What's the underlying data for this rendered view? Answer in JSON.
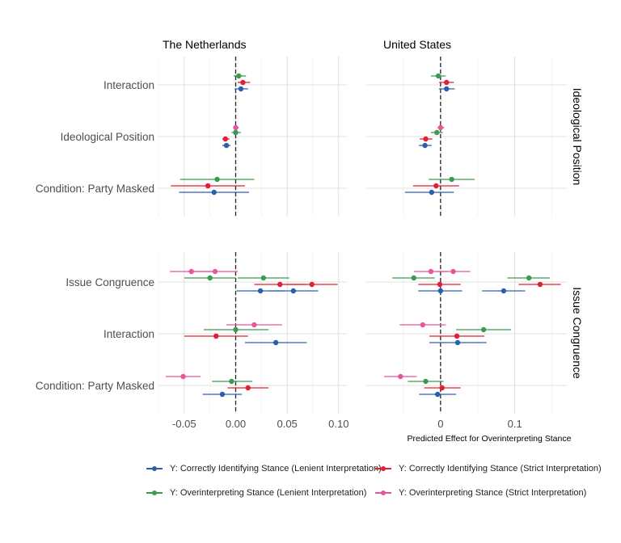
{
  "chart_data": {
    "type": "scatter",
    "subtype": "coefficient-plot",
    "column_titles": [
      "The Netherlands",
      "United States"
    ],
    "row_titles": [
      "Ideological Position",
      "Issue Congruence"
    ],
    "x_axis_label_right": "Predicted Effect for Overinterpreting Stance",
    "x_ticks_left": [
      -0.05,
      0.0,
      0.05,
      0.1
    ],
    "x_tick_labels_left": [
      "-0.05",
      "0.00",
      "0.05",
      "0.10"
    ],
    "x_ticks_right": [
      0.0,
      0.1
    ],
    "x_tick_labels_right": [
      "0",
      "0.1"
    ],
    "xlim_left": [
      -0.075,
      0.108
    ],
    "xlim_right": [
      -0.1,
      0.17
    ],
    "reference_line": 0,
    "grid": true,
    "legend_position": "bottom",
    "series": [
      {
        "name": "Y: Correctly Identifying Stance (Lenient Interpretation)",
        "color": "#2b5fae"
      },
      {
        "name": "Y: Overinterpreting Stance (Lenient Interpretation)",
        "color": "#3a9a4f"
      },
      {
        "name": "Y: Correctly Identifying Stance (Strict Interpretation)",
        "color": "#e41f2f"
      },
      {
        "name": "Y: Overinterpreting Stance (Strict Interpretation)",
        "color": "#e8559a"
      }
    ],
    "panels": [
      {
        "row": "Ideological Position",
        "col": "The Netherlands",
        "categories": [
          "Interaction",
          "Ideological Position",
          "Condition: Party Masked"
        ],
        "estimates": [
          {
            "category": "Interaction",
            "series": 1,
            "est": 0.003,
            "lo": -0.002,
            "hi": 0.01
          },
          {
            "category": "Interaction",
            "series": 2,
            "est": 0.007,
            "lo": 0.002,
            "hi": 0.014
          },
          {
            "category": "Interaction",
            "series": 0,
            "est": 0.005,
            "lo": -0.001,
            "hi": 0.012
          },
          {
            "category": "Ideological Position",
            "series": 3,
            "est": 0.0,
            "lo": -0.002,
            "hi": 0.003
          },
          {
            "category": "Ideological Position",
            "series": 1,
            "est": 0.0,
            "lo": -0.004,
            "hi": 0.005
          },
          {
            "category": "Ideological Position",
            "series": 2,
            "est": -0.01,
            "lo": -0.013,
            "hi": -0.006
          },
          {
            "category": "Ideological Position",
            "series": 0,
            "est": -0.009,
            "lo": -0.013,
            "hi": -0.005
          },
          {
            "category": "Condition: Party Masked",
            "series": 1,
            "est": -0.018,
            "lo": -0.054,
            "hi": 0.018
          },
          {
            "category": "Condition: Party Masked",
            "series": 2,
            "est": -0.027,
            "lo": -0.063,
            "hi": 0.009
          },
          {
            "category": "Condition: Party Masked",
            "series": 0,
            "est": -0.021,
            "lo": -0.055,
            "hi": 0.013
          }
        ]
      },
      {
        "row": "Ideological Position",
        "col": "United States",
        "categories": [
          "Interaction",
          "Ideological Position",
          "Condition: Party Masked"
        ],
        "estimates": [
          {
            "category": "Interaction",
            "series": 1,
            "est": -0.003,
            "lo": -0.013,
            "hi": 0.007
          },
          {
            "category": "Interaction",
            "series": 2,
            "est": 0.008,
            "lo": -0.002,
            "hi": 0.018
          },
          {
            "category": "Interaction",
            "series": 0,
            "est": 0.008,
            "lo": -0.002,
            "hi": 0.019
          },
          {
            "category": "Ideological Position",
            "series": 3,
            "est": 0.0,
            "lo": -0.004,
            "hi": 0.005
          },
          {
            "category": "Ideological Position",
            "series": 1,
            "est": -0.005,
            "lo": -0.013,
            "hi": 0.003
          },
          {
            "category": "Ideological Position",
            "series": 2,
            "est": -0.02,
            "lo": -0.028,
            "hi": -0.011
          },
          {
            "category": "Ideological Position",
            "series": 0,
            "est": -0.021,
            "lo": -0.029,
            "hi": -0.012
          },
          {
            "category": "Condition: Party Masked",
            "series": 1,
            "est": 0.015,
            "lo": -0.016,
            "hi": 0.046
          },
          {
            "category": "Condition: Party Masked",
            "series": 2,
            "est": -0.006,
            "lo": -0.037,
            "hi": 0.025
          },
          {
            "category": "Condition: Party Masked",
            "series": 0,
            "est": -0.012,
            "lo": -0.048,
            "hi": 0.018
          }
        ]
      },
      {
        "row": "Issue Congruence",
        "col": "The Netherlands",
        "categories": [
          "Issue Congruence",
          "Interaction",
          "Condition: Party Masked"
        ],
        "estimates": [
          {
            "category": "Issue Congruence",
            "series": 3,
            "est": -0.043,
            "lo": -0.064,
            "hi": -0.021
          },
          {
            "category": "Issue Congruence",
            "series": 3,
            "est": -0.02,
            "lo": -0.041,
            "hi": 0.002
          },
          {
            "category": "Issue Congruence",
            "series": 1,
            "est": 0.027,
            "lo": 0.002,
            "hi": 0.052
          },
          {
            "category": "Issue Congruence",
            "series": 1,
            "est": -0.025,
            "lo": -0.05,
            "hi": 0.0
          },
          {
            "category": "Issue Congruence",
            "series": 2,
            "est": 0.043,
            "lo": 0.018,
            "hi": 0.068
          },
          {
            "category": "Issue Congruence",
            "series": 2,
            "est": 0.074,
            "lo": 0.049,
            "hi": 0.099
          },
          {
            "category": "Issue Congruence",
            "series": 0,
            "est": 0.024,
            "lo": 0.001,
            "hi": 0.047
          },
          {
            "category": "Issue Congruence",
            "series": 0,
            "est": 0.056,
            "lo": 0.033,
            "hi": 0.08
          },
          {
            "category": "Interaction",
            "series": 3,
            "est": 0.018,
            "lo": -0.009,
            "hi": 0.045
          },
          {
            "category": "Interaction",
            "series": 1,
            "est": 0.0,
            "lo": -0.031,
            "hi": 0.032
          },
          {
            "category": "Interaction",
            "series": 2,
            "est": -0.019,
            "lo": -0.05,
            "hi": 0.012
          },
          {
            "category": "Interaction",
            "series": 0,
            "est": 0.039,
            "lo": 0.009,
            "hi": 0.069
          },
          {
            "category": "Condition: Party Masked",
            "series": 3,
            "est": -0.051,
            "lo": -0.068,
            "hi": -0.034
          },
          {
            "category": "Condition: Party Masked",
            "series": 1,
            "est": -0.004,
            "lo": -0.023,
            "hi": 0.016
          },
          {
            "category": "Condition: Party Masked",
            "series": 2,
            "est": 0.012,
            "lo": -0.008,
            "hi": 0.032
          },
          {
            "category": "Condition: Party Masked",
            "series": 0,
            "est": -0.013,
            "lo": -0.032,
            "hi": 0.006
          }
        ]
      },
      {
        "row": "Issue Congruence",
        "col": "United States",
        "categories": [
          "Issue Congruence",
          "Interaction",
          "Condition: Party Masked"
        ],
        "estimates": [
          {
            "category": "Issue Congruence",
            "series": 3,
            "est": -0.013,
            "lo": -0.036,
            "hi": 0.01
          },
          {
            "category": "Issue Congruence",
            "series": 3,
            "est": 0.017,
            "lo": -0.006,
            "hi": 0.04
          },
          {
            "category": "Issue Congruence",
            "series": 1,
            "est": -0.036,
            "lo": -0.065,
            "hi": -0.008
          },
          {
            "category": "Issue Congruence",
            "series": 1,
            "est": 0.119,
            "lo": 0.09,
            "hi": 0.147
          },
          {
            "category": "Issue Congruence",
            "series": 2,
            "est": -0.001,
            "lo": -0.03,
            "hi": 0.027
          },
          {
            "category": "Issue Congruence",
            "series": 2,
            "est": 0.134,
            "lo": 0.105,
            "hi": 0.162
          },
          {
            "category": "Issue Congruence",
            "series": 0,
            "est": 0.0,
            "lo": -0.03,
            "hi": 0.029
          },
          {
            "category": "Issue Congruence",
            "series": 0,
            "est": 0.085,
            "lo": 0.056,
            "hi": 0.114
          },
          {
            "category": "Interaction",
            "series": 3,
            "est": -0.024,
            "lo": -0.055,
            "hi": 0.007
          },
          {
            "category": "Interaction",
            "series": 1,
            "est": 0.058,
            "lo": 0.021,
            "hi": 0.095
          },
          {
            "category": "Interaction",
            "series": 2,
            "est": 0.022,
            "lo": -0.015,
            "hi": 0.059
          },
          {
            "category": "Interaction",
            "series": 0,
            "est": 0.023,
            "lo": -0.015,
            "hi": 0.062
          },
          {
            "category": "Condition: Party Masked",
            "series": 3,
            "est": -0.054,
            "lo": -0.076,
            "hi": -0.032
          },
          {
            "category": "Condition: Party Masked",
            "series": 1,
            "est": -0.02,
            "lo": -0.044,
            "hi": 0.004
          },
          {
            "category": "Condition: Party Masked",
            "series": 2,
            "est": 0.002,
            "lo": -0.022,
            "hi": 0.027
          },
          {
            "category": "Condition: Party Masked",
            "series": 0,
            "est": -0.004,
            "lo": -0.029,
            "hi": 0.021
          }
        ]
      }
    ]
  }
}
